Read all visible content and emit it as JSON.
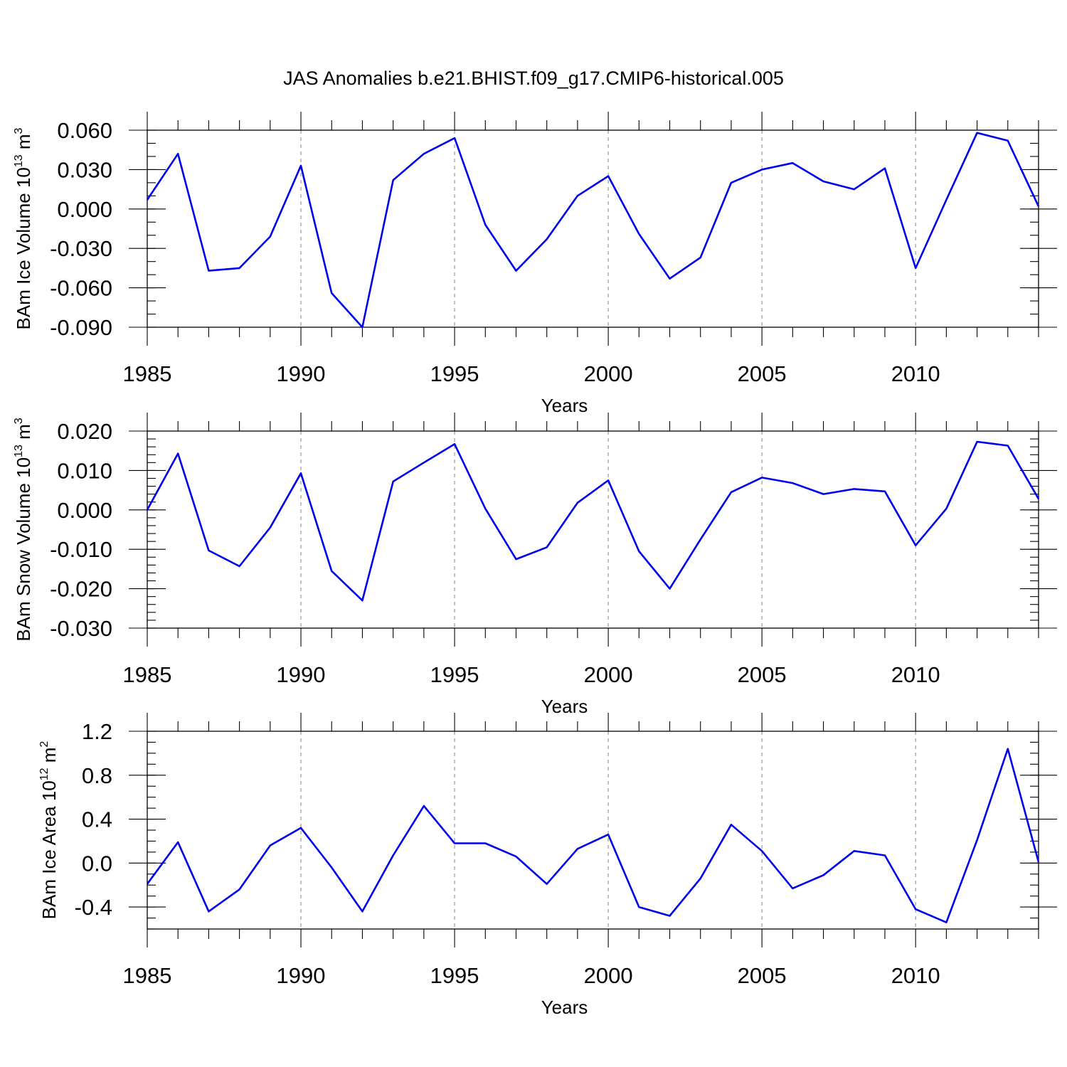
{
  "title": "JAS Anomalies b.e21.BHIST.f09_g17.CMIP6-historical.005",
  "chart_data": [
    {
      "type": "line",
      "name": "ice-volume",
      "ylabel_parts": [
        "BAm Ice Volume 10",
        "13",
        " m",
        "3"
      ],
      "xlabel": "Years",
      "xlim": [
        1985,
        2014
      ],
      "ylim": [
        -0.09,
        0.06
      ],
      "yticks": [
        -0.09,
        -0.06,
        -0.03,
        0.0,
        0.03,
        0.06
      ],
      "ytick_labels": [
        "-0.090",
        "-0.060",
        "-0.030",
        "0.000",
        "0.030",
        "0.060"
      ],
      "ytick_minor_step": 0.01,
      "xticks": [
        1985,
        1990,
        1995,
        2000,
        2005,
        2010
      ],
      "xtick_labels": [
        "1985",
        "1990",
        "1995",
        "2000",
        "2005",
        "2010"
      ],
      "grid": "dashed vertical at major x ticks",
      "color": "#0000ee",
      "x": [
        1985,
        1986,
        1987,
        1988,
        1989,
        1990,
        1991,
        1992,
        1993,
        1994,
        1995,
        1996,
        1997,
        1998,
        1999,
        2000,
        2001,
        2002,
        2003,
        2004,
        2005,
        2006,
        2007,
        2008,
        2009,
        2010,
        2011,
        2012,
        2013,
        2014
      ],
      "values": [
        0.007,
        0.042,
        -0.047,
        -0.045,
        -0.021,
        0.033,
        -0.064,
        -0.09,
        0.022,
        0.042,
        0.054,
        -0.012,
        -0.047,
        -0.023,
        0.01,
        0.025,
        -0.019,
        -0.053,
        -0.037,
        0.02,
        0.03,
        0.035,
        0.021,
        0.015,
        0.031,
        -0.045,
        0.007,
        0.058,
        0.052,
        0.002
      ]
    },
    {
      "type": "line",
      "name": "snow-volume",
      "ylabel_parts": [
        "BAm Snow Volume 10",
        "13",
        " m",
        "3"
      ],
      "xlabel": "Years",
      "xlim": [
        1985,
        2014
      ],
      "ylim": [
        -0.03,
        0.02
      ],
      "yticks": [
        -0.03,
        -0.02,
        -0.01,
        0.0,
        0.01,
        0.02
      ],
      "ytick_labels": [
        "-0.030",
        "-0.020",
        "-0.010",
        "0.000",
        "0.010",
        "0.020"
      ],
      "ytick_minor_step": 0.002,
      "xticks": [
        1985,
        1990,
        1995,
        2000,
        2005,
        2010
      ],
      "xtick_labels": [
        "1985",
        "1990",
        "1995",
        "2000",
        "2005",
        "2010"
      ],
      "grid": "dashed vertical at major x ticks",
      "color": "#0000ee",
      "x": [
        1985,
        1986,
        1987,
        1988,
        1989,
        1990,
        1991,
        1992,
        1993,
        1994,
        1995,
        1996,
        1997,
        1998,
        1999,
        2000,
        2001,
        2002,
        2003,
        2004,
        2005,
        2006,
        2007,
        2008,
        2009,
        2010,
        2011,
        2012,
        2013,
        2014
      ],
      "values": [
        0.0,
        0.0143,
        -0.0103,
        -0.0143,
        -0.0045,
        0.0093,
        -0.0155,
        -0.023,
        0.0072,
        0.012,
        0.0167,
        0.0003,
        -0.0125,
        -0.0095,
        0.0018,
        0.0075,
        -0.0105,
        -0.02,
        -0.0075,
        0.0045,
        0.0082,
        0.0068,
        0.004,
        0.0053,
        0.0047,
        -0.009,
        0.0003,
        0.0173,
        0.0163,
        0.0028
      ]
    },
    {
      "type": "line",
      "name": "ice-area",
      "ylabel_parts": [
        "BAm Ice Area 10",
        "12",
        " m",
        "2"
      ],
      "xlabel": "Years",
      "xlim": [
        1985,
        2014
      ],
      "ylim": [
        -0.6,
        1.2
      ],
      "yticks": [
        -0.4,
        0.0,
        0.4,
        0.8,
        1.2
      ],
      "ytick_labels": [
        "-0.4",
        "0.0",
        "0.4",
        "0.8",
        "1.2"
      ],
      "ytick_minor_step": 0.1,
      "xticks": [
        1985,
        1990,
        1995,
        2000,
        2005,
        2010
      ],
      "xtick_labels": [
        "1985",
        "1990",
        "1995",
        "2000",
        "2005",
        "2010"
      ],
      "grid": "dashed vertical at major x ticks",
      "color": "#0000ee",
      "x": [
        1985,
        1986,
        1987,
        1988,
        1989,
        1990,
        1991,
        1992,
        1993,
        1994,
        1995,
        1996,
        1997,
        1998,
        1999,
        2000,
        2001,
        2002,
        2003,
        2004,
        2005,
        2006,
        2007,
        2008,
        2009,
        2010,
        2011,
        2012,
        2013,
        2014
      ],
      "values": [
        -0.19,
        0.19,
        -0.44,
        -0.24,
        0.16,
        0.32,
        -0.04,
        -0.44,
        0.07,
        0.52,
        0.18,
        0.18,
        0.06,
        -0.19,
        0.13,
        0.26,
        -0.4,
        -0.48,
        -0.14,
        0.35,
        0.11,
        -0.23,
        -0.11,
        0.11,
        0.07,
        -0.42,
        -0.54,
        0.21,
        1.04,
        0.01
      ]
    }
  ]
}
